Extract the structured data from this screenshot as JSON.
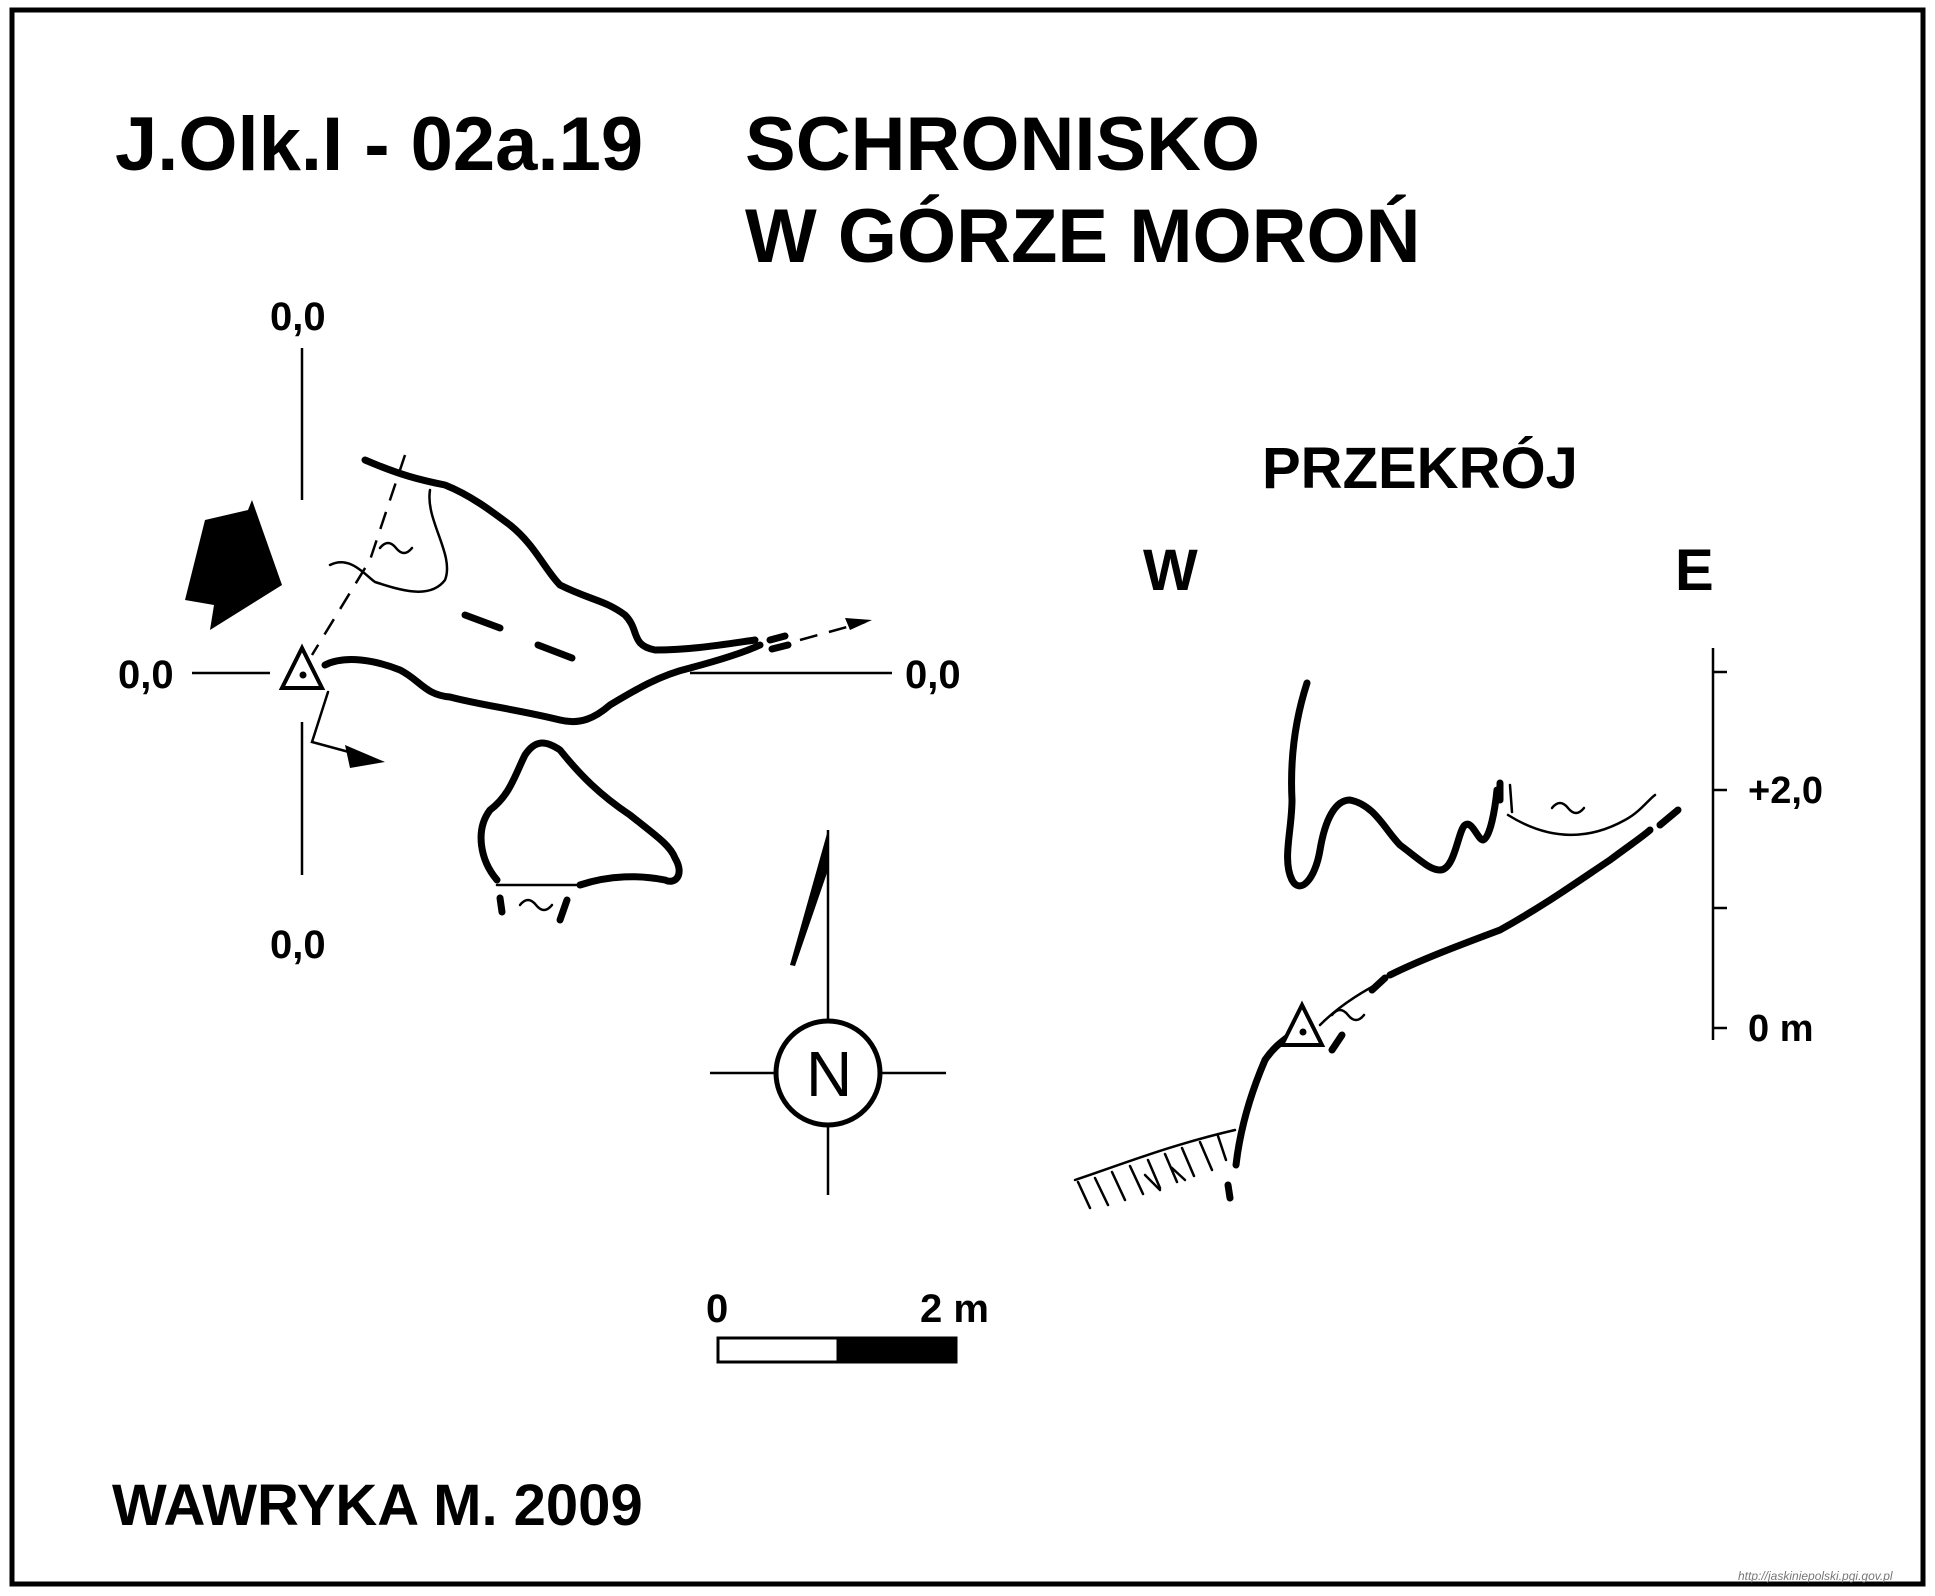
{
  "title": {
    "code": "J.Olk.I - 02a.19",
    "name_line1": "SCHRONISKO",
    "name_line2": "W GÓRZE MOROŃ"
  },
  "plan": {
    "datum_top": "0,0",
    "datum_left": "0,0",
    "datum_right": "0,0",
    "datum_bottom": "0,0"
  },
  "compass": {
    "north_label": "N"
  },
  "scale_bar": {
    "label_start": "0",
    "label_end": "2 m"
  },
  "section": {
    "title": "PRZEKRÓJ",
    "west_label": "W",
    "east_label": "E",
    "height_upper": "+2,0",
    "height_zero": "0 m"
  },
  "author": "WAWRYKA M. 2009",
  "source_url": "http://jaskiniepolski.pgi.gov.pl",
  "colors": {
    "ink": "#000000",
    "paper": "#ffffff"
  }
}
